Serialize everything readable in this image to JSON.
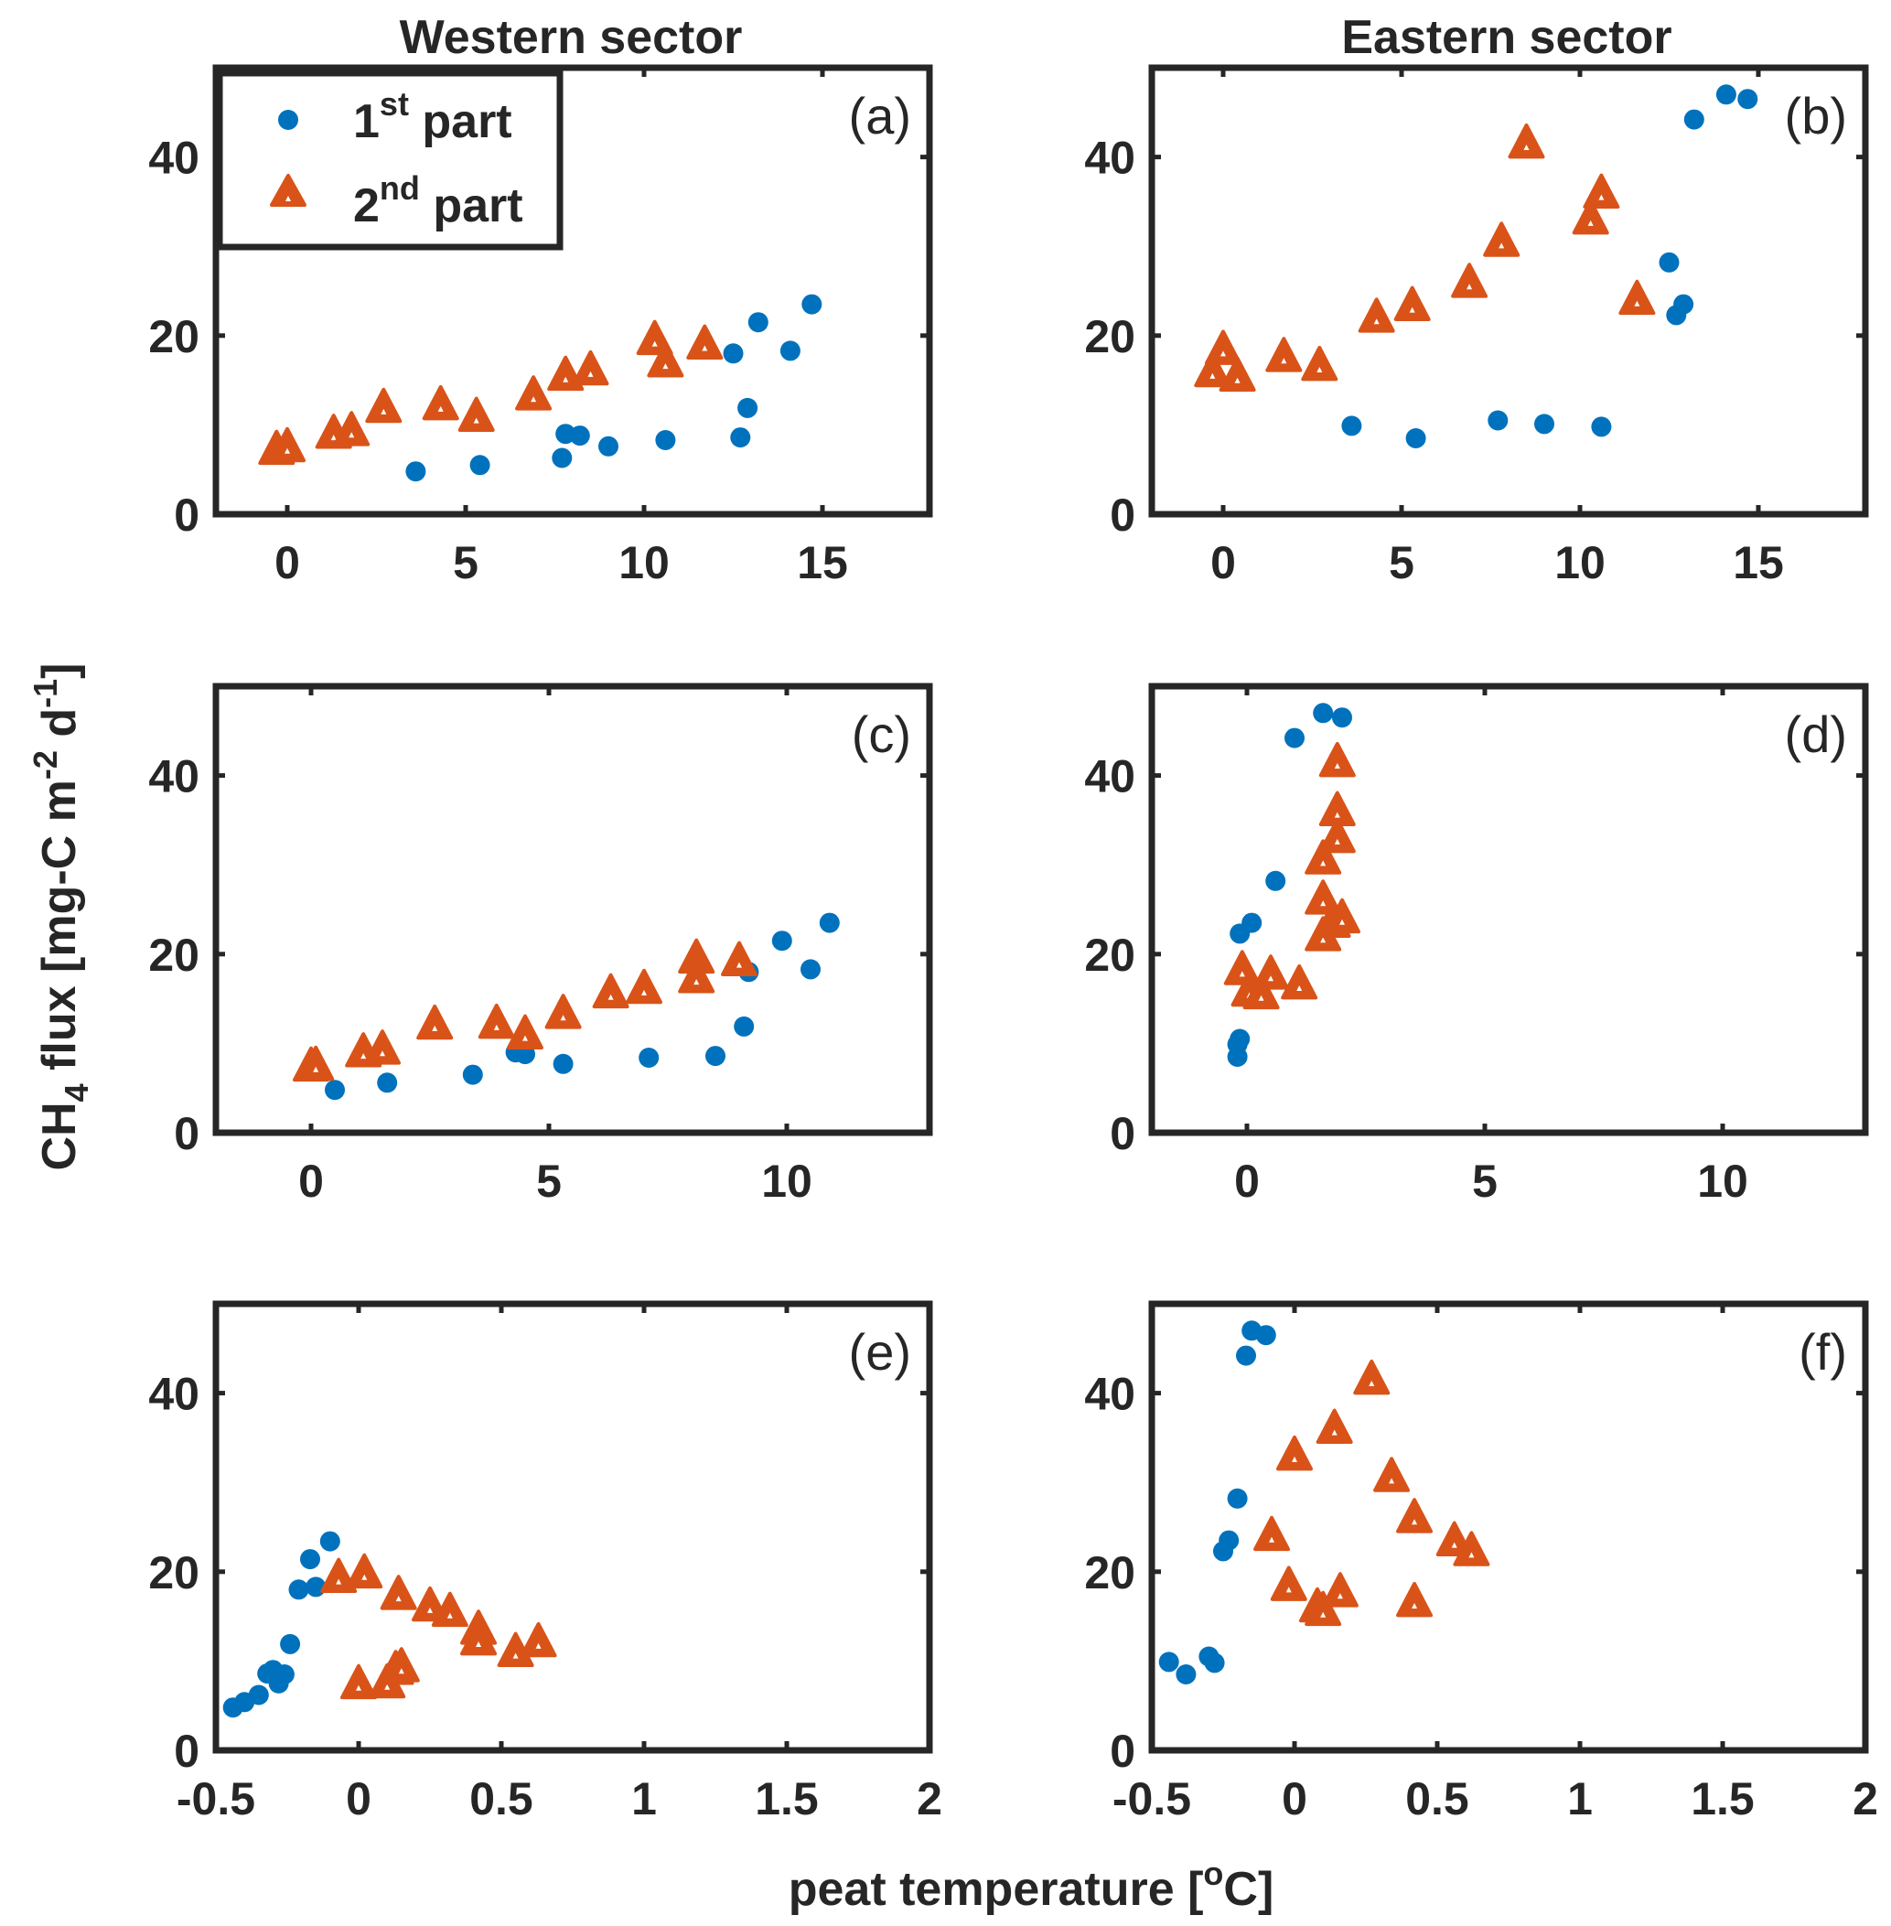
{
  "figure": {
    "col_titles": [
      "Western sector",
      "Eastern sector"
    ],
    "ylabel": {
      "base": "CH",
      "sub": "4",
      "rest1": " flux [mg-C m",
      "sup1": "-2",
      "rest2": " d",
      "sup2": "-1",
      "rest3": "]"
    },
    "xlabel": {
      "pre": "peat temperature [",
      "sup": "o",
      "post": "C]"
    },
    "legend": [
      {
        "main": "1",
        "sup": "st",
        "tail": " part",
        "marker": "circle",
        "color": "#0072BD"
      },
      {
        "main": "2",
        "sup": "nd",
        "tail": " part",
        "marker": "triangle",
        "color": "#D95319"
      }
    ],
    "colors": {
      "series1": "#0072BD",
      "series2": "#D95319",
      "axis": "#262626"
    }
  },
  "chart_data": [
    {
      "type": "scatter",
      "label": "(a)",
      "xlim": [
        -2,
        18
      ],
      "ylim": [
        0,
        50
      ],
      "xticks": [
        0,
        5,
        10,
        15
      ],
      "yticks": [
        0,
        20,
        40
      ],
      "xticklabels": [
        "0",
        "5",
        "10",
        "15"
      ],
      "yticklabels": [
        "0",
        "20",
        "40"
      ],
      "series": [
        {
          "name": "1st part",
          "marker": "circle",
          "points": [
            [
              3.6,
              4.8
            ],
            [
              5.4,
              5.5
            ],
            [
              7.7,
              6.3
            ],
            [
              7.8,
              9.0
            ],
            [
              8.2,
              8.8
            ],
            [
              9.0,
              7.6
            ],
            [
              10.6,
              8.3
            ],
            [
              12.7,
              8.6
            ],
            [
              12.9,
              11.9
            ],
            [
              12.5,
              18.0
            ],
            [
              13.2,
              21.5
            ],
            [
              14.1,
              18.3
            ],
            [
              14.7,
              23.5
            ]
          ]
        },
        {
          "name": "2nd part",
          "marker": "triangle",
          "points": [
            [
              -0.3,
              7.2
            ],
            [
              0.0,
              7.5
            ],
            [
              1.3,
              9.0
            ],
            [
              1.8,
              9.3
            ],
            [
              2.7,
              11.9
            ],
            [
              4.3,
              12.2
            ],
            [
              5.3,
              10.9
            ],
            [
              6.9,
              13.3
            ],
            [
              7.8,
              15.5
            ],
            [
              8.5,
              16.1
            ],
            [
              10.3,
              19.5
            ],
            [
              10.6,
              17.0
            ],
            [
              11.7,
              19.0
            ]
          ]
        }
      ]
    },
    {
      "type": "scatter",
      "label": "(b)",
      "xlim": [
        -2,
        18
      ],
      "ylim": [
        0,
        50
      ],
      "xticks": [
        0,
        5,
        10,
        15
      ],
      "yticks": [
        0,
        20,
        40
      ],
      "xticklabels": [
        "0",
        "5",
        "10",
        "15"
      ],
      "yticklabels": [
        "0",
        "20",
        "40"
      ],
      "series": [
        {
          "name": "1st part",
          "marker": "circle",
          "points": [
            [
              3.6,
              9.9
            ],
            [
              5.4,
              8.5
            ],
            [
              7.7,
              10.5
            ],
            [
              9.0,
              10.1
            ],
            [
              10.6,
              9.8
            ],
            [
              12.5,
              28.2
            ],
            [
              12.7,
              22.3
            ],
            [
              12.9,
              23.5
            ],
            [
              13.2,
              44.2
            ],
            [
              14.1,
              47.0
            ],
            [
              14.7,
              46.5
            ]
          ]
        },
        {
          "name": "2nd part",
          "marker": "triangle",
          "points": [
            [
              -0.3,
              15.9
            ],
            [
              0.0,
              18.4
            ],
            [
              0.4,
              15.4
            ],
            [
              1.7,
              17.6
            ],
            [
              2.7,
              16.6
            ],
            [
              4.3,
              22.0
            ],
            [
              5.3,
              23.3
            ],
            [
              6.9,
              25.9
            ],
            [
              7.8,
              30.5
            ],
            [
              8.5,
              41.5
            ],
            [
              10.3,
              33.0
            ],
            [
              10.6,
              35.9
            ],
            [
              11.6,
              24.0
            ]
          ]
        }
      ]
    },
    {
      "type": "scatter",
      "label": "(c)",
      "xlim": [
        -2,
        13
      ],
      "ylim": [
        0,
        50
      ],
      "xticks": [
        0,
        5,
        10
      ],
      "yticks": [
        0,
        20,
        40
      ],
      "xticklabels": [
        "0",
        "5",
        "10"
      ],
      "yticklabels": [
        "0",
        "20",
        "40"
      ],
      "series": [
        {
          "name": "1st part",
          "marker": "circle",
          "points": [
            [
              0.5,
              4.8
            ],
            [
              1.6,
              5.6
            ],
            [
              3.4,
              6.5
            ],
            [
              4.3,
              9.0
            ],
            [
              4.5,
              8.8
            ],
            [
              5.3,
              7.7
            ],
            [
              7.1,
              8.4
            ],
            [
              8.5,
              8.6
            ],
            [
              9.1,
              11.9
            ],
            [
              9.2,
              18.0
            ],
            [
              9.9,
              21.5
            ],
            [
              10.5,
              18.3
            ],
            [
              10.9,
              23.5
            ]
          ]
        },
        {
          "name": "2nd part",
          "marker": "triangle",
          "points": [
            [
              0.0,
              7.4
            ],
            [
              0.1,
              7.5
            ],
            [
              1.1,
              9.0
            ],
            [
              1.5,
              9.3
            ],
            [
              2.6,
              12.1
            ],
            [
              3.9,
              12.2
            ],
            [
              4.5,
              11.0
            ],
            [
              5.3,
              13.3
            ],
            [
              6.3,
              15.6
            ],
            [
              7.0,
              16.1
            ],
            [
              8.1,
              19.5
            ],
            [
              8.1,
              17.3
            ],
            [
              9.0,
              19.2
            ]
          ]
        }
      ]
    },
    {
      "type": "scatter",
      "label": "(d)",
      "xlim": [
        -2,
        13
      ],
      "ylim": [
        0,
        50
      ],
      "xticks": [
        0,
        5,
        10
      ],
      "yticks": [
        0,
        20,
        40
      ],
      "xticklabels": [
        "0",
        "5",
        "10"
      ],
      "yticklabels": [
        "0",
        "20",
        "40"
      ],
      "series": [
        {
          "name": "1st part",
          "marker": "circle",
          "points": [
            [
              -0.2,
              8.5
            ],
            [
              -0.2,
              9.9
            ],
            [
              -0.15,
              10.5
            ],
            [
              -0.15,
              22.3
            ],
            [
              0.1,
              23.5
            ],
            [
              0.6,
              28.2
            ],
            [
              1.0,
              44.2
            ],
            [
              1.6,
              47.0
            ],
            [
              2.0,
              46.5
            ]
          ]
        },
        {
          "name": "2nd part",
          "marker": "triangle",
          "points": [
            [
              -0.1,
              18.2
            ],
            [
              0.05,
              15.8
            ],
            [
              0.3,
              15.5
            ],
            [
              0.5,
              17.7
            ],
            [
              1.1,
              16.6
            ],
            [
              1.6,
              22.0
            ],
            [
              1.6,
              26.1
            ],
            [
              1.6,
              30.6
            ],
            [
              1.8,
              23.5
            ],
            [
              1.9,
              33.0
            ],
            [
              1.9,
              36.0
            ],
            [
              1.9,
              41.5
            ],
            [
              2.0,
              24.0
            ]
          ]
        }
      ]
    },
    {
      "type": "scatter",
      "label": "(e)",
      "xlim": [
        -0.5,
        2
      ],
      "ylim": [
        0,
        50
      ],
      "xticks": [
        -0.5,
        0,
        0.5,
        1,
        1.5,
        2
      ],
      "yticks": [
        0,
        20,
        40
      ],
      "xticklabels": [
        "-0.5",
        "0",
        "0.5",
        "1",
        "1.5",
        "2"
      ],
      "yticklabels": [
        "0",
        "20",
        "40"
      ],
      "series": [
        {
          "name": "1st part",
          "marker": "circle",
          "points": [
            [
              -0.44,
              4.8
            ],
            [
              -0.4,
              5.4
            ],
            [
              -0.35,
              6.2
            ],
            [
              -0.32,
              8.6
            ],
            [
              -0.3,
              9.0
            ],
            [
              -0.28,
              7.5
            ],
            [
              -0.26,
              8.5
            ],
            [
              -0.24,
              11.9
            ],
            [
              -0.21,
              18.0
            ],
            [
              -0.17,
              21.4
            ],
            [
              -0.15,
              18.3
            ],
            [
              -0.1,
              23.4
            ]
          ]
        },
        {
          "name": "2nd part",
          "marker": "triangle",
          "points": [
            [
              -0.07,
              19.3
            ],
            [
              0.0,
              7.4
            ],
            [
              0.02,
              19.8
            ],
            [
              0.1,
              7.5
            ],
            [
              0.13,
              9.0
            ],
            [
              0.15,
              9.3
            ],
            [
              0.14,
              17.4
            ],
            [
              0.25,
              16.1
            ],
            [
              0.32,
              15.5
            ],
            [
              0.42,
              13.5
            ],
            [
              0.42,
              12.3
            ],
            [
              0.55,
              11.0
            ],
            [
              0.63,
              12.1
            ]
          ]
        }
      ]
    },
    {
      "type": "scatter",
      "label": "(f)",
      "xlim": [
        -0.5,
        2
      ],
      "ylim": [
        0,
        50
      ],
      "xticks": [
        -0.5,
        0,
        0.5,
        1,
        1.5,
        2
      ],
      "yticks": [
        0,
        20,
        40
      ],
      "xticklabels": [
        "-0.5",
        "0",
        "0.5",
        "1",
        "1.5",
        "2"
      ],
      "yticklabels": [
        "0",
        "20",
        "40"
      ],
      "series": [
        {
          "name": "1st part",
          "marker": "circle",
          "points": [
            [
              -0.44,
              9.9
            ],
            [
              -0.38,
              8.5
            ],
            [
              -0.3,
              10.5
            ],
            [
              -0.28,
              9.8
            ],
            [
              -0.25,
              22.3
            ],
            [
              -0.23,
              23.5
            ],
            [
              -0.2,
              28.2
            ],
            [
              -0.17,
              44.2
            ],
            [
              -0.15,
              47.0
            ],
            [
              -0.1,
              46.5
            ]
          ]
        },
        {
          "name": "2nd part",
          "marker": "triangle",
          "points": [
            [
              -0.08,
              24.0
            ],
            [
              -0.02,
              18.4
            ],
            [
              0.0,
              33.0
            ],
            [
              0.08,
              16.0
            ],
            [
              0.1,
              15.6
            ],
            [
              0.14,
              36.0
            ],
            [
              0.16,
              17.7
            ],
            [
              0.27,
              41.5
            ],
            [
              0.34,
              30.6
            ],
            [
              0.42,
              26.0
            ],
            [
              0.42,
              16.6
            ],
            [
              0.56,
              23.4
            ],
            [
              0.62,
              22.3
            ]
          ]
        }
      ]
    }
  ]
}
